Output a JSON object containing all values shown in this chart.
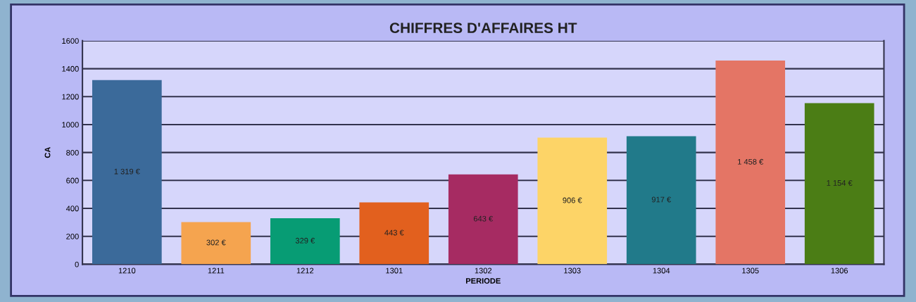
{
  "chart_data": {
    "type": "bar",
    "title": "CHIFFRES D'AFFAIRES HT",
    "xlabel": "PERIODE",
    "ylabel": "CA",
    "categories": [
      "1210",
      "1211",
      "1212",
      "1301",
      "1302",
      "1303",
      "1304",
      "1305",
      "1306"
    ],
    "values": [
      1319,
      302,
      329,
      443,
      643,
      906,
      917,
      1458,
      1154
    ],
    "colors": [
      "#3b6a9a",
      "#f5a44f",
      "#079c74",
      "#e2601e",
      "#a62b62",
      "#fdd467",
      "#217a8a",
      "#e47565",
      "#4b7d15"
    ],
    "value_labels": [
      "1 319 €",
      "302 €",
      "329 €",
      "443 €",
      "643 €",
      "906 €",
      "917 €",
      "1 458 €",
      "1 154 €"
    ],
    "ylim": [
      0,
      1600
    ],
    "yticks": [
      0,
      200,
      400,
      600,
      800,
      1000,
      1200,
      1400,
      1600
    ],
    "grid": "y",
    "legend": false
  }
}
